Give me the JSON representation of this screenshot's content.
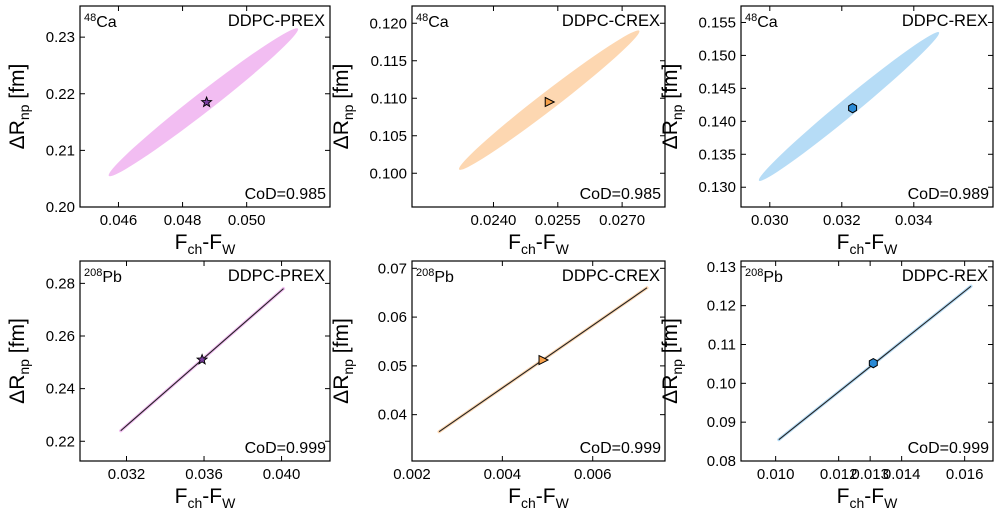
{
  "colors": {
    "pink": "#f2bdf2",
    "orange": "#fdd7b1",
    "blue": "#b6dcf6",
    "star_fill": "#7b3fa0",
    "triangle_fill": "#f7a04a",
    "hexagon_fill": "#2a8ad6",
    "line": "#222222"
  },
  "chart_data": [
    {
      "type": "scatter",
      "nucleus": {
        "mass": "48",
        "symbol": "Ca"
      },
      "model": "DDPC-PREX",
      "cod": "CoD=0.985",
      "xlabel": {
        "main": "F",
        "sub1": "ch",
        "mid": "-F",
        "sub2": "W"
      },
      "ylabel": {
        "pre": "ΔR",
        "sub": "np",
        "post": " [fm]"
      },
      "xlim": [
        0.0448,
        0.0526
      ],
      "ylim": [
        0.2,
        0.2355
      ],
      "xticks": [
        {
          "v": 0.046,
          "label": "0.046"
        },
        {
          "v": 0.048,
          "label": "0.048"
        },
        {
          "v": 0.05,
          "label": "0.050"
        }
      ],
      "yticks": [
        {
          "v": 0.2,
          "label": "0.20"
        },
        {
          "v": 0.21,
          "label": "0.21"
        },
        {
          "v": 0.22,
          "label": "0.22"
        },
        {
          "v": 0.23,
          "label": "0.23"
        }
      ],
      "region": {
        "shape": "ellipse",
        "x_range": [
          0.0457,
          0.0516
        ],
        "y_range": [
          0.2055,
          0.2315
        ],
        "minor_width": 0.0006,
        "color_key": "pink"
      },
      "marker": {
        "shape": "star",
        "x": 0.04875,
        "y": 0.2185,
        "color_key": "star_fill"
      }
    },
    {
      "type": "scatter",
      "nucleus": {
        "mass": "48",
        "symbol": "Ca"
      },
      "model": "DDPC-CREX",
      "cod": "CoD=0.985",
      "xlabel": {
        "main": "F",
        "sub1": "ch",
        "mid": "-F",
        "sub2": "W"
      },
      "ylabel": {
        "pre": "ΔR",
        "sub": "np",
        "post": " [fm]"
      },
      "xlim": [
        0.0221,
        0.028
      ],
      "ylim": [
        0.0955,
        0.1223
      ],
      "xticks": [
        {
          "v": 0.024,
          "label": "0.0240"
        },
        {
          "v": 0.0255,
          "label": "0.0255"
        },
        {
          "v": 0.027,
          "label": "0.0270"
        }
      ],
      "yticks": [
        {
          "v": 0.1,
          "label": "0.100"
        },
        {
          "v": 0.105,
          "label": "0.105"
        },
        {
          "v": 0.11,
          "label": "0.110"
        },
        {
          "v": 0.115,
          "label": "0.115"
        },
        {
          "v": 0.12,
          "label": "0.120"
        }
      ],
      "region": {
        "shape": "ellipse",
        "x_range": [
          0.0232,
          0.0274
        ],
        "y_range": [
          0.1005,
          0.119
        ],
        "minor_width": 0.00042,
        "color_key": "orange"
      },
      "marker": {
        "shape": "triangle-right",
        "x": 0.0253,
        "y": 0.1095,
        "color_key": "triangle_fill"
      }
    },
    {
      "type": "scatter",
      "nucleus": {
        "mass": "48",
        "symbol": "Ca"
      },
      "model": "DDPC-REX",
      "cod": "CoD=0.989",
      "xlabel": {
        "main": "F",
        "sub1": "ch",
        "mid": "-F",
        "sub2": "W"
      },
      "ylabel": {
        "pre": "ΔR",
        "sub": "np",
        "post": " [fm]"
      },
      "xlim": [
        0.0292,
        0.0362
      ],
      "ylim": [
        0.127,
        0.1575
      ],
      "xticks": [
        {
          "v": 0.03,
          "label": "0.030"
        },
        {
          "v": 0.032,
          "label": "0.032"
        },
        {
          "v": 0.034,
          "label": "0.034"
        }
      ],
      "yticks": [
        {
          "v": 0.13,
          "label": "0.130"
        },
        {
          "v": 0.135,
          "label": "0.135"
        },
        {
          "v": 0.14,
          "label": "0.140"
        },
        {
          "v": 0.145,
          "label": "0.145"
        },
        {
          "v": 0.15,
          "label": "0.150"
        },
        {
          "v": 0.155,
          "label": "0.155"
        }
      ],
      "region": {
        "shape": "ellipse",
        "x_range": [
          0.0297,
          0.0347
        ],
        "y_range": [
          0.131,
          0.1535
        ],
        "minor_width": 0.00048,
        "color_key": "blue"
      },
      "marker": {
        "shape": "hexagon",
        "x": 0.0323,
        "y": 0.142,
        "color_key": "hexagon_fill"
      }
    },
    {
      "type": "scatter",
      "nucleus": {
        "mass": "208",
        "symbol": "Pb"
      },
      "model": "DDPC-PREX",
      "cod": "CoD=0.999",
      "xlabel": {
        "main": "F",
        "sub1": "ch",
        "mid": "-F",
        "sub2": "W"
      },
      "ylabel": {
        "pre": "ΔR",
        "sub": "np",
        "post": " [fm]"
      },
      "xlim": [
        0.0296,
        0.0425
      ],
      "ylim": [
        0.2125,
        0.2885
      ],
      "xticks": [
        {
          "v": 0.032,
          "label": "0.032"
        },
        {
          "v": 0.036,
          "label": "0.036"
        },
        {
          "v": 0.04,
          "label": "0.040"
        }
      ],
      "yticks": [
        {
          "v": 0.22,
          "label": "0.22"
        },
        {
          "v": 0.24,
          "label": "0.24"
        },
        {
          "v": 0.26,
          "label": "0.26"
        },
        {
          "v": 0.28,
          "label": "0.28"
        }
      ],
      "region": {
        "shape": "line",
        "x_range": [
          0.0317,
          0.0401
        ],
        "y_range": [
          0.224,
          0.278
        ],
        "minor_width": 6e-05,
        "color_key": "pink"
      },
      "marker": {
        "shape": "star",
        "x": 0.0359,
        "y": 0.251,
        "color_key": "star_fill"
      }
    },
    {
      "type": "scatter",
      "nucleus": {
        "mass": "208",
        "symbol": "Pb"
      },
      "model": "DDPC-CREX",
      "cod": "CoD=0.999",
      "xlabel": {
        "main": "F",
        "sub1": "ch",
        "mid": "-F",
        "sub2": "W"
      },
      "ylabel": {
        "pre": "ΔR",
        "sub": "np",
        "post": " [fm]"
      },
      "xlim": [
        0.002,
        0.0076
      ],
      "ylim": [
        0.0305,
        0.0715
      ],
      "xticks": [
        {
          "v": 0.002,
          "label": "0.002"
        },
        {
          "v": 0.004,
          "label": "0.004"
        },
        {
          "v": 0.006,
          "label": "0.006"
        }
      ],
      "yticks": [
        {
          "v": 0.04,
          "label": "0.04"
        },
        {
          "v": 0.05,
          "label": "0.05"
        },
        {
          "v": 0.06,
          "label": "0.06"
        },
        {
          "v": 0.07,
          "label": "0.07"
        }
      ],
      "region": {
        "shape": "line",
        "x_range": [
          0.0026,
          0.0072
        ],
        "y_range": [
          0.0365,
          0.066
        ],
        "minor_width": 4e-05,
        "color_key": "orange"
      },
      "marker": {
        "shape": "triangle-right",
        "x": 0.0049,
        "y": 0.0512,
        "color_key": "triangle_fill"
      }
    },
    {
      "type": "scatter",
      "nucleus": {
        "mass": "208",
        "symbol": "Pb"
      },
      "model": "DDPC-REX",
      "cod": "CoD=0.999",
      "xlabel": {
        "main": "F",
        "sub1": "ch",
        "mid": "-F",
        "sub2": "W"
      },
      "ylabel": {
        "pre": "ΔR",
        "sub": "np",
        "post": " [fm]"
      },
      "xlim": [
        0.0089,
        0.0169
      ],
      "ylim": [
        0.08,
        0.1315
      ],
      "xticks": [
        {
          "v": 0.01,
          "label": "0.010"
        },
        {
          "v": 0.012,
          "label": "0.012"
        },
        {
          "v": 0.013,
          "label": "0.013"
        },
        {
          "v": 0.014,
          "label": "0.014"
        },
        {
          "v": 0.016,
          "label": "0.016"
        }
      ],
      "yticks": [
        {
          "v": 0.08,
          "label": "0.08"
        },
        {
          "v": 0.09,
          "label": "0.09"
        },
        {
          "v": 0.1,
          "label": "0.10"
        },
        {
          "v": 0.11,
          "label": "0.11"
        },
        {
          "v": 0.12,
          "label": "0.12"
        },
        {
          "v": 0.13,
          "label": "0.13"
        }
      ],
      "region": {
        "shape": "line",
        "x_range": [
          0.0101,
          0.0162
        ],
        "y_range": [
          0.0855,
          0.125
        ],
        "minor_width": 3e-05,
        "color_key": "blue"
      },
      "marker": {
        "shape": "hexagon",
        "x": 0.0131,
        "y": 0.1052,
        "color_key": "hexagon_fill"
      }
    }
  ]
}
